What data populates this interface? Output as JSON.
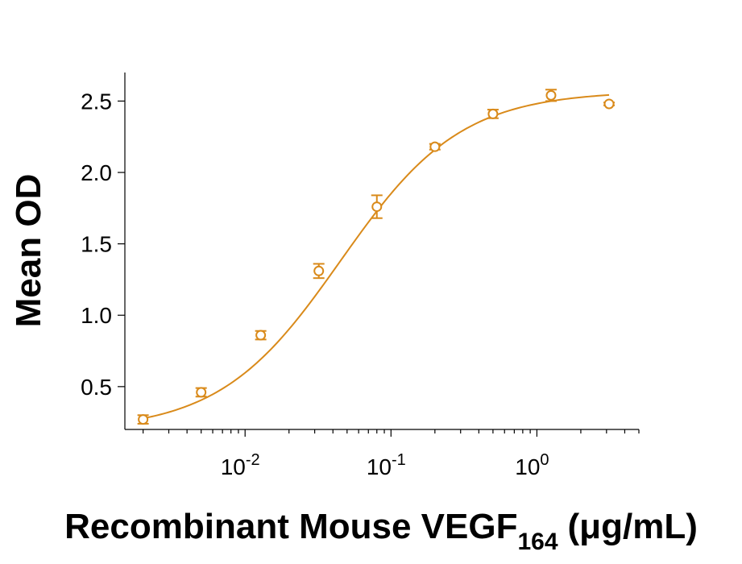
{
  "chart_data": {
    "type": "scatter",
    "title": "",
    "xlabel": {
      "main": "Recombinant Mouse VEGF",
      "subscript": "164",
      "unit": "(μg/mL)"
    },
    "ylabel": "Mean OD",
    "xscale": "log",
    "xlim": [
      0.0015,
      5
    ],
    "ylim": [
      0.2,
      2.7
    ],
    "x_ticks": [
      {
        "base": "10",
        "exp": "-2",
        "value": 0.01
      },
      {
        "base": "10",
        "exp": "-1",
        "value": 0.1
      },
      {
        "base": "10",
        "exp": "0",
        "value": 1
      }
    ],
    "y_ticks": [
      {
        "label": "0.5",
        "value": 0.5
      },
      {
        "label": "1.0",
        "value": 1.0
      },
      {
        "label": "1.5",
        "value": 1.5
      },
      {
        "label": "2.0",
        "value": 2.0
      },
      {
        "label": "2.5",
        "value": 2.5
      }
    ],
    "color": "#d98a1a",
    "grid": false,
    "legend": "none",
    "series": [
      {
        "x": [
          0.002,
          0.005,
          0.0128,
          0.032,
          0.08,
          0.2,
          0.5,
          1.25,
          3.125
        ],
        "y": [
          0.27,
          0.46,
          0.86,
          1.31,
          1.76,
          2.18,
          2.41,
          2.54,
          2.48
        ],
        "error": [
          0.03,
          0.03,
          0.03,
          0.05,
          0.08,
          0.02,
          0.03,
          0.04,
          0.01
        ]
      }
    ],
    "fit_curve": {
      "model": "4PL",
      "bottom": 0.19,
      "top": 2.57,
      "ec50": 0.045,
      "hill": 1.05
    }
  }
}
